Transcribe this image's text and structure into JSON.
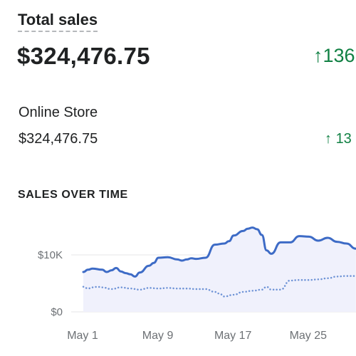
{
  "report": {
    "title": "Total sales",
    "total_value": "$324,476.75",
    "total_change": "136",
    "arrow_icon": "arrow-up-icon"
  },
  "online_store": {
    "label": "Online Store",
    "value": "$324,476.75",
    "change": "13"
  },
  "section": {
    "heading": "SALES OVER TIME"
  },
  "colors": {
    "positive": "#108043",
    "current_line": "#3d6bc6",
    "comparison_line": "#6e93d6",
    "area_fill": "#f0f1fc"
  },
  "chart_data": {
    "type": "line",
    "y_tick_labels": [
      "$10K",
      "$0"
    ],
    "x_tick_labels": [
      "May 1",
      "May 9",
      "May 17",
      "May 25"
    ],
    "ylim": [
      0,
      15000
    ],
    "grid": true,
    "series": [
      {
        "style": "solid",
        "x": [
          1,
          1.5,
          2,
          3,
          3.5,
          4,
          4.5,
          5,
          5.5,
          6,
          6.5,
          7,
          8,
          8.5,
          9,
          10,
          11,
          11.5,
          12,
          12.5,
          13,
          14,
          15,
          16,
          16.5,
          17,
          18,
          18.5,
          19,
          19.5,
          20,
          20.5,
          21,
          22,
          23,
          24,
          25,
          26,
          27,
          28,
          29,
          30
        ],
        "values": [
          7000,
          7400,
          7600,
          7400,
          7000,
          7300,
          7700,
          7100,
          6800,
          6600,
          6200,
          6900,
          8100,
          8600,
          9500,
          9600,
          9200,
          9000,
          9200,
          9400,
          9300,
          9500,
          11800,
          12000,
          12400,
          13400,
          14200,
          14600,
          14800,
          14500,
          13500,
          10800,
          10200,
          12200,
          12200,
          13300,
          13200,
          12500,
          13000,
          12300,
          12000,
          11100
        ]
      },
      {
        "style": "dotted",
        "x": [
          1,
          1.5,
          2,
          2.5,
          3,
          4,
          5,
          6,
          7,
          8,
          9,
          10,
          11,
          12,
          13,
          14,
          15,
          15.5,
          16,
          17,
          18,
          19,
          20,
          20.5,
          21,
          22,
          23,
          24,
          25,
          26,
          27,
          28,
          29,
          30
        ],
        "values": [
          4400,
          4100,
          4300,
          4400,
          4300,
          4000,
          4300,
          4100,
          3900,
          4200,
          4100,
          4200,
          4100,
          4100,
          4000,
          4000,
          3500,
          3200,
          2700,
          3000,
          3500,
          3700,
          3900,
          4400,
          3900,
          3900,
          5500,
          5600,
          5600,
          5700,
          5900,
          6200,
          6300,
          6300
        ]
      }
    ]
  }
}
